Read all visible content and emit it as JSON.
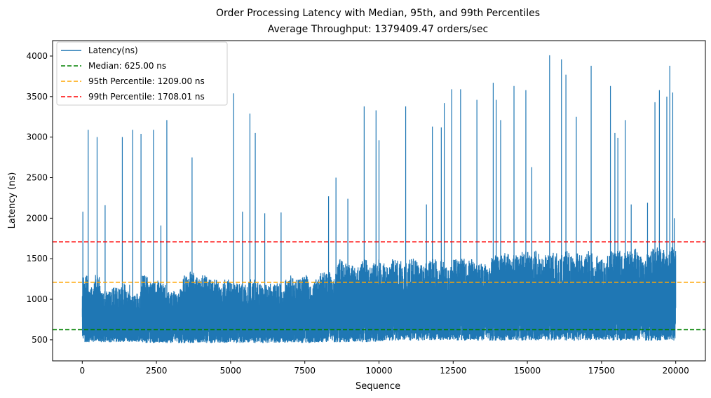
{
  "chart_data": {
    "type": "line",
    "title": "Order Processing Latency with Median, 95th, and 99th Percentiles",
    "subtitle": "Average Throughput: 1379409.47 orders/sec",
    "xlabel": "Sequence",
    "ylabel": "Latency (ns)",
    "xlim": [
      -1000,
      21000
    ],
    "ylim": [
      240,
      4190
    ],
    "x_ticks": [
      0,
      2500,
      5000,
      7500,
      10000,
      12500,
      15000,
      17500,
      20000
    ],
    "y_ticks": [
      500,
      1000,
      1500,
      2000,
      2500,
      3000,
      3500,
      4000
    ],
    "grid": false,
    "legend": "top-left",
    "series": [
      {
        "name": "Latency(ns)",
        "color": "#1f77b4",
        "x_range": [
          0,
          20000
        ],
        "points_per_segment": 200,
        "segment_upper": [
          1300,
          1150,
          1300,
          1100,
          1100,
          1150,
          1150,
          1200,
          1050,
          1100,
          1300,
          1200,
          1250,
          1200,
          1100,
          1150,
          1150,
          1300,
          1350,
          1300,
          1300,
          1250,
          1250,
          1200,
          1250,
          1200,
          1200,
          1200,
          1250,
          1200,
          1200,
          1200,
          1200,
          1200,
          1250,
          1300,
          1250,
          1300,
          1200,
          1250,
          1350,
          1400,
          1350,
          1500,
          1450,
          1450,
          1400,
          1500,
          1400,
          1500,
          1450,
          1400,
          1500,
          1500,
          1450,
          1500,
          1500,
          1450,
          1500,
          1500,
          1500,
          1400,
          1500,
          1500,
          1500,
          1500,
          1450,
          1500,
          1500,
          1550,
          1550,
          1600,
          1550,
          1550,
          1600,
          1600,
          1600,
          1500,
          1550,
          1600,
          1550,
          1600,
          1550,
          1600,
          1550,
          1600,
          1550,
          1500,
          1550,
          1600,
          1600,
          1600,
          1600,
          1650,
          1600,
          1600,
          1650,
          1650,
          1600,
          1650
        ],
        "segment_lower": [
          470,
          470,
          480,
          470,
          470,
          470,
          470,
          470,
          470,
          470,
          460,
          460,
          460,
          460,
          460,
          460,
          460,
          460,
          460,
          460,
          460,
          460,
          460,
          460,
          460,
          460,
          460,
          460,
          460,
          460,
          460,
          460,
          460,
          460,
          460,
          460,
          460,
          460,
          460,
          460,
          470,
          470,
          470,
          470,
          470,
          470,
          470,
          470,
          470,
          470,
          480,
          480,
          490,
          490,
          490,
          490,
          490,
          490,
          490,
          490,
          490,
          490,
          490,
          490,
          490,
          490,
          490,
          490,
          490,
          490,
          490,
          490,
          490,
          490,
          490,
          490,
          490,
          490,
          490,
          490,
          490,
          490,
          490,
          490,
          490,
          490,
          490,
          490,
          490,
          490,
          490,
          490,
          490,
          490,
          490,
          490,
          490,
          490,
          490,
          490
        ],
        "spikes": [
          {
            "x": 20,
            "y": 2080
          },
          {
            "x": 200,
            "y": 3090
          },
          {
            "x": 500,
            "y": 3000
          },
          {
            "x": 770,
            "y": 2160
          },
          {
            "x": 1350,
            "y": 3000
          },
          {
            "x": 1700,
            "y": 3090
          },
          {
            "x": 1980,
            "y": 3040
          },
          {
            "x": 2400,
            "y": 3090
          },
          {
            "x": 2650,
            "y": 1910
          },
          {
            "x": 2850,
            "y": 3210
          },
          {
            "x": 3700,
            "y": 2750
          },
          {
            "x": 5100,
            "y": 3540
          },
          {
            "x": 5400,
            "y": 2080
          },
          {
            "x": 5650,
            "y": 3290
          },
          {
            "x": 5830,
            "y": 3050
          },
          {
            "x": 6150,
            "y": 2060
          },
          {
            "x": 6700,
            "y": 2070
          },
          {
            "x": 8300,
            "y": 2270
          },
          {
            "x": 8550,
            "y": 2500
          },
          {
            "x": 8950,
            "y": 2240
          },
          {
            "x": 9500,
            "y": 3380
          },
          {
            "x": 9900,
            "y": 3330
          },
          {
            "x": 10000,
            "y": 2960
          },
          {
            "x": 10900,
            "y": 3380
          },
          {
            "x": 11600,
            "y": 2170
          },
          {
            "x": 11800,
            "y": 3130
          },
          {
            "x": 12100,
            "y": 3120
          },
          {
            "x": 12200,
            "y": 3420
          },
          {
            "x": 12450,
            "y": 3590
          },
          {
            "x": 12750,
            "y": 3590
          },
          {
            "x": 13300,
            "y": 3460
          },
          {
            "x": 13850,
            "y": 3670
          },
          {
            "x": 13950,
            "y": 3460
          },
          {
            "x": 14100,
            "y": 3210
          },
          {
            "x": 14550,
            "y": 3630
          },
          {
            "x": 14950,
            "y": 3580
          },
          {
            "x": 15150,
            "y": 2630
          },
          {
            "x": 15750,
            "y": 4010
          },
          {
            "x": 16150,
            "y": 3960
          },
          {
            "x": 16300,
            "y": 3770
          },
          {
            "x": 16650,
            "y": 3250
          },
          {
            "x": 17150,
            "y": 3880
          },
          {
            "x": 17800,
            "y": 3630
          },
          {
            "x": 17950,
            "y": 3050
          },
          {
            "x": 18050,
            "y": 2990
          },
          {
            "x": 18300,
            "y": 3210
          },
          {
            "x": 18500,
            "y": 2170
          },
          {
            "x": 19050,
            "y": 2190
          },
          {
            "x": 19300,
            "y": 3430
          },
          {
            "x": 19450,
            "y": 3580
          },
          {
            "x": 19700,
            "y": 3500
          },
          {
            "x": 19800,
            "y": 3880
          },
          {
            "x": 19900,
            "y": 3550
          },
          {
            "x": 19950,
            "y": 2000
          }
        ]
      },
      {
        "name": "Median: 625.00 ns",
        "color": "#008000",
        "dash": "dashed",
        "y": 625.0
      },
      {
        "name": "95th Percentile: 1209.00 ns",
        "color": "#ffa500",
        "dash": "dashed",
        "y": 1209.0
      },
      {
        "name": "99th Percentile: 1708.01 ns",
        "color": "#ff0000",
        "dash": "dashed",
        "y": 1708.01
      }
    ]
  }
}
